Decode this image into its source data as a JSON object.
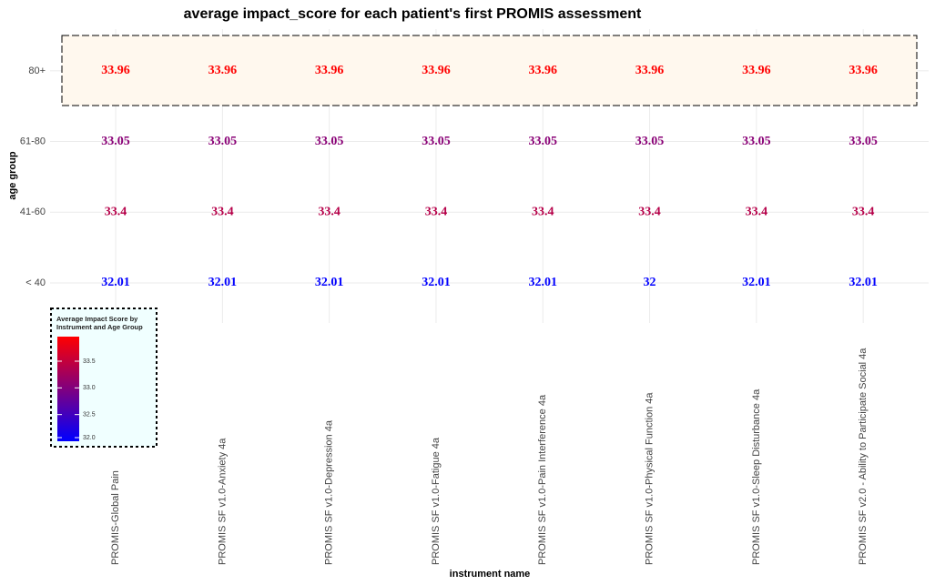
{
  "chart_data": {
    "type": "heatmap",
    "title": "average impact_score for each patient's first PROMIS assessment",
    "x_label": "instrument name",
    "y_label": "age group",
    "categories": [
      "PROMIS-Global Pain",
      "PROMIS SF v1.0-Anxiety 4a",
      "PROMIS SF v1.0-Depression 4a",
      "PROMIS SF v1.0-Fatigue 4a",
      "PROMIS SF v1.0-Pain Interference 4a",
      "PROMIS SF v1.0-Physical Function 4a",
      "PROMIS SF v1.0-Sleep Disturbance 4a",
      "PROMIS SF v2.0 - Ability to Participate Social 4a"
    ],
    "rows": [
      "80+",
      "61-80",
      "41-60",
      "< 40"
    ],
    "values": [
      [
        33.96,
        33.96,
        33.96,
        33.96,
        33.96,
        33.96,
        33.96,
        33.96
      ],
      [
        33.05,
        33.05,
        33.05,
        33.05,
        33.05,
        33.05,
        33.05,
        33.05
      ],
      [
        33.4,
        33.4,
        33.4,
        33.4,
        33.4,
        33.4,
        33.4,
        33.4
      ],
      [
        32.01,
        32.01,
        32.01,
        32.01,
        32.01,
        32,
        32.01,
        32.01
      ]
    ],
    "legend_title": "Average Impact Score by Instrument and Age Group",
    "color_low": "#0000ff",
    "color_high": "#ff0000",
    "clim": [
      32,
      33.96
    ],
    "cticks": [
      {
        "value": 32,
        "label": "32.0"
      },
      32.5,
      {
        "value": 33,
        "label": "33.0"
      },
      33.5
    ],
    "grid": true
  }
}
